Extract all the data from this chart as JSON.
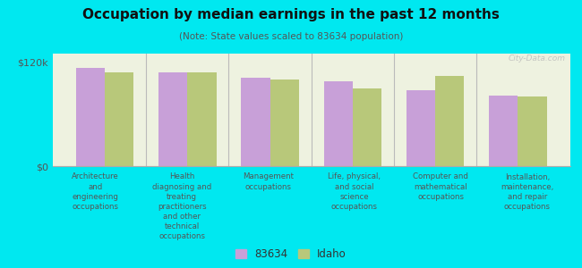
{
  "title": "Occupation by median earnings in the past 12 months",
  "subtitle": "(Note: State values scaled to 83634 population)",
  "background_outer": "#00e8f0",
  "background_inner": "#eef2e0",
  "categories": [
    "Architecture\nand\nengineering\noccupations",
    "Health\ndiagnosing and\ntreating\npractitioners\nand other\ntechnical\noccupations",
    "Management\noccupations",
    "Life, physical,\nand social\nscience\noccupations",
    "Computer and\nmathematical\noccupations",
    "Installation,\nmaintenance,\nand repair\noccupations"
  ],
  "values_83634": [
    113000,
    108000,
    102000,
    98000,
    88000,
    82000
  ],
  "values_idaho": [
    108000,
    108000,
    100000,
    90000,
    104000,
    80000
  ],
  "color_83634": "#c8a0d8",
  "color_idaho": "#b8c87a",
  "ylim": [
    0,
    130000
  ],
  "yticks": [
    0,
    120000
  ],
  "ytick_labels": [
    "$0",
    "$120k"
  ],
  "legend_labels": [
    "83634",
    "Idaho"
  ],
  "bar_width": 0.35,
  "watermark": "City-Data.com"
}
